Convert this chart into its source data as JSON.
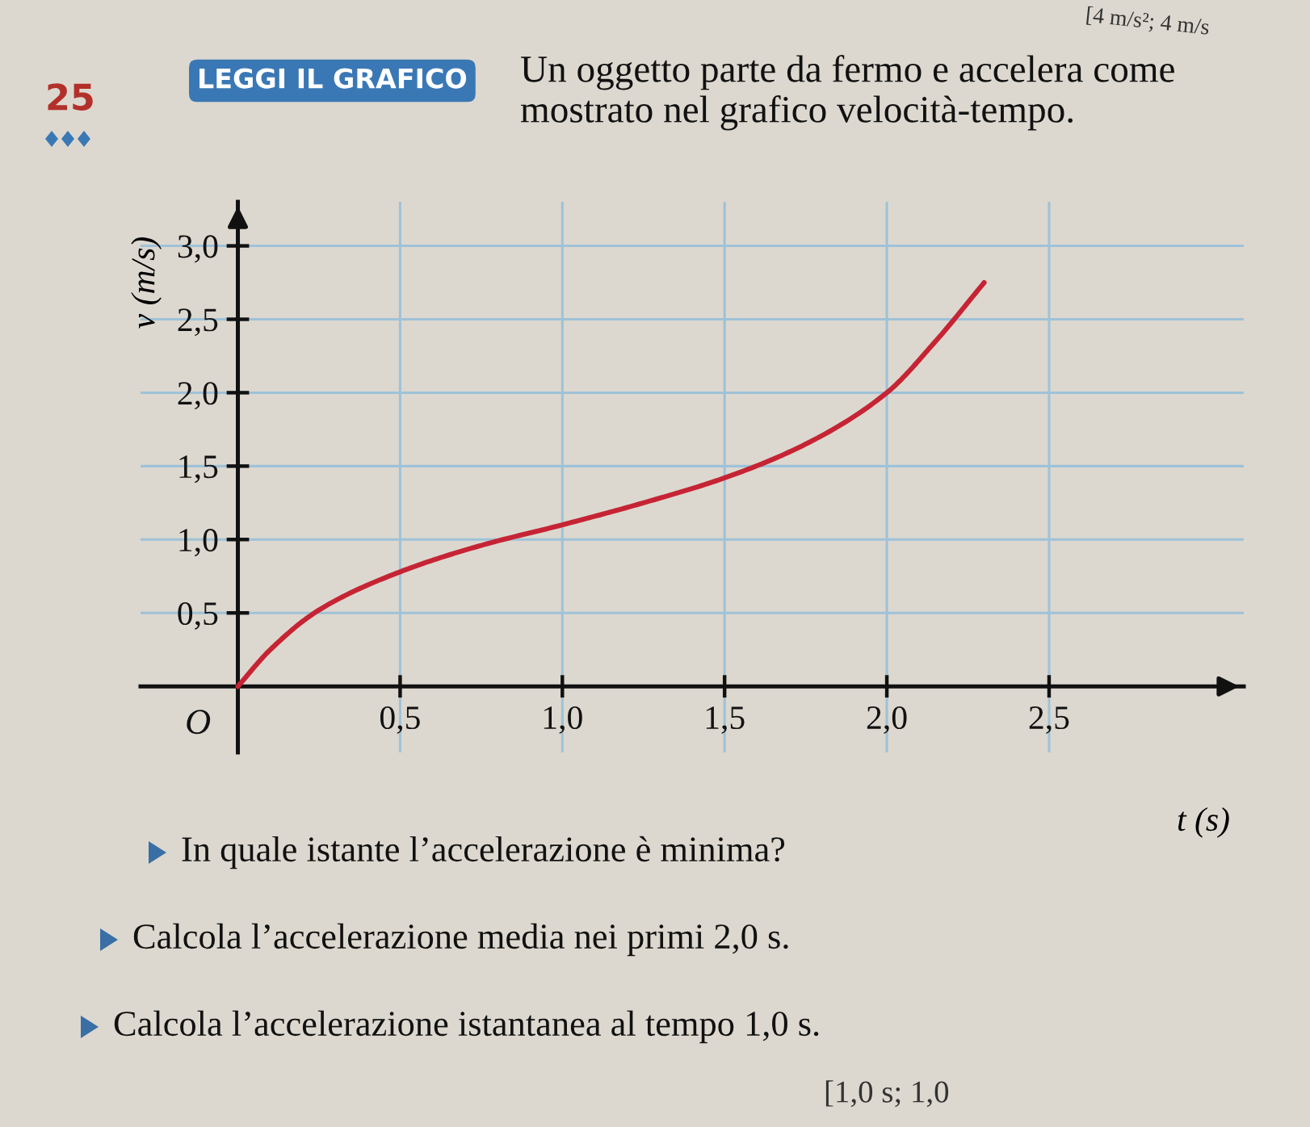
{
  "chart_data": {
    "type": "line",
    "title": "Un oggetto parte da fermo e accelera come mostrato nel grafico velocità-tempo.",
    "xlabel": "t (s)",
    "ylabel": "v (m/s)",
    "x": [
      0,
      0.1,
      0.25,
      0.5,
      0.75,
      1.0,
      1.25,
      1.5,
      1.75,
      2.0,
      2.15,
      2.3
    ],
    "series": [
      {
        "color": "#c62434",
        "values": [
          0,
          0.25,
          0.52,
          0.78,
          0.96,
          1.1,
          1.25,
          1.42,
          1.65,
          2.0,
          2.35,
          2.75
        ]
      }
    ],
    "xlim": [
      -0.3,
      3.1
    ],
    "ylim": [
      -0.45,
      3.3
    ],
    "xticks": [
      {
        "value": 0.5,
        "label": "0,5"
      },
      {
        "value": 1.0,
        "label": "1,0"
      },
      {
        "value": 1.5,
        "label": "1,5"
      },
      {
        "value": 2.0,
        "label": "2,0"
      },
      {
        "value": 2.5,
        "label": "2,5"
      }
    ],
    "yticks": [
      {
        "value": 0.5,
        "label": "0,5"
      },
      {
        "value": 1.0,
        "label": "1,0"
      },
      {
        "value": 1.5,
        "label": "1,5"
      },
      {
        "value": 2.0,
        "label": "2,0"
      },
      {
        "value": 2.5,
        "label": "2,5"
      },
      {
        "value": 3.0,
        "label": "3,0"
      }
    ],
    "grid": true,
    "line_style": "solid",
    "annotations": [
      "25",
      "LEGGI IL GRAFICO",
      "[4 m/s²; 4 m/s",
      {
        "text": "O",
        "x": 0,
        "y": 0
      },
      "In quale istante l’accelerazione è minima?",
      "Calcola l’accelerazione media nei primi 2,0 s.",
      "Calcola l’accelerazione istantanea al tempo 1,0 s.",
      "[1,0 s; 1,0"
    ]
  }
}
